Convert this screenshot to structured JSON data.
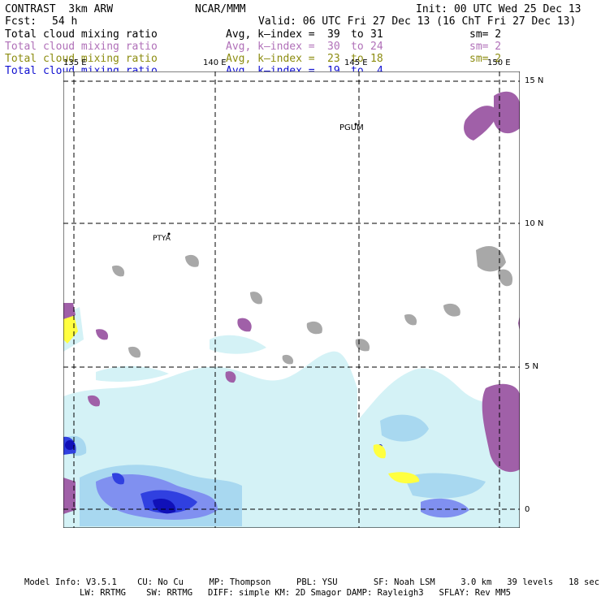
{
  "header": {
    "model": "CONTRAST  3km ARW",
    "center": "NCAR/MMM",
    "init": "Init: 00 UTC Wed 25 Dec 13",
    "fcst_label": "Fcst:",
    "fcst_value": "54 h",
    "valid": "Valid: 06 UTC Fri 27 Dec 13 (16 ChT Fri 27 Dec 13)"
  },
  "fields": [
    {
      "name": "Total cloud mixing ratio",
      "desc": "Avg, k–index =",
      "from": "39",
      "to_word": "to",
      "to": "31",
      "sm": "sm= 2",
      "color": "#000000"
    },
    {
      "name": "Total cloud mixing ratio",
      "desc": "Avg, k–index =",
      "from": "30",
      "to_word": "to",
      "to": "24",
      "sm": "sm= 2",
      "color": "#b070b8"
    },
    {
      "name": "Total cloud mixing ratio",
      "desc": "Avg, k–index =",
      "from": "23",
      "to_word": "to",
      "to": "18",
      "sm": "sm= 2",
      "color": "#8c8c10"
    },
    {
      "name": "Total cloud mixing ratio",
      "desc": "Avg, k–index =",
      "from": "19",
      "to_word": "to",
      "to": "4",
      "sm": "",
      "color": "#1010d0"
    }
  ],
  "map": {
    "lon_labels": [
      "135 E",
      "140 E",
      "145 E",
      "150 E"
    ],
    "lat_labels": [
      "15 N",
      "10 N",
      "5 N",
      "0"
    ],
    "stations": [
      "PGUM",
      "PTYA"
    ],
    "colors": {
      "grey": "#a8a8a8",
      "purple": "#a060a8",
      "yellow": "#ffff40",
      "light_cyan": "#d4f2f6",
      "light_blue": "#a8d8f0",
      "mid_blue": "#8090f0",
      "blue": "#3040e0",
      "dark_blue": "#1010b8"
    }
  },
  "footer": {
    "line1": "Model Info: V3.5.1    CU: No Cu     MP: Thompson     PBL: YSU       SF: Noah LSM     3.0 km   39 levels   18 sec",
    "line2": "LW: RRTMG    SW: RRTMG   DIFF: simple KM: 2D Smagor DAMP: Rayleigh3   SFLAY: Rev MM5"
  }
}
